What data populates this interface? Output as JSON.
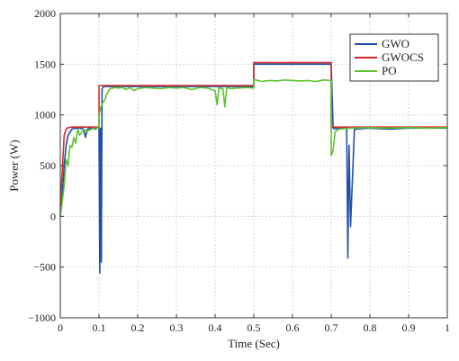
{
  "chart_data": {
    "type": "line",
    "title": "",
    "xlabel": "Time (Sec)",
    "ylabel": "Power (W)",
    "xlim": [
      0,
      1
    ],
    "ylim": [
      -1000,
      2000
    ],
    "xticks": [
      0,
      0.1,
      0.2,
      0.3,
      0.4,
      0.5,
      0.6,
      0.7,
      0.8,
      0.9,
      1
    ],
    "yticks": [
      -1000,
      -500,
      0,
      500,
      1000,
      1500,
      2000
    ],
    "xtick_labels": [
      "0",
      "0.1",
      "0.2",
      "0.3",
      "0.4",
      "0.5",
      "0.6",
      "0.7",
      "0.8",
      "0.9",
      "1"
    ],
    "ytick_labels": [
      "−1000",
      "−500",
      "0",
      "500",
      "1000",
      "1500",
      "2000"
    ],
    "grid": true,
    "legend_position": "top-right",
    "series": [
      {
        "name": "GWO",
        "color": "#1f4fa8",
        "x": [
          0,
          0.005,
          0.01,
          0.015,
          0.02,
          0.03,
          0.04,
          0.05,
          0.06,
          0.065,
          0.07,
          0.08,
          0.09,
          0.095,
          0.1,
          0.102,
          0.104,
          0.106,
          0.108,
          0.11,
          0.112,
          0.115,
          0.12,
          0.13,
          0.15,
          0.2,
          0.25,
          0.3,
          0.35,
          0.4,
          0.45,
          0.5,
          0.5,
          0.55,
          0.6,
          0.65,
          0.7,
          0.7,
          0.705,
          0.71,
          0.72,
          0.73,
          0.735,
          0.74,
          0.743,
          0.746,
          0.75,
          0.76,
          0.8,
          0.85,
          0.9,
          0.95,
          1.0
        ],
        "y": [
          50,
          200,
          500,
          700,
          800,
          860,
          870,
          870,
          860,
          780,
          860,
          870,
          860,
          870,
          870,
          -560,
          870,
          -450,
          1260,
          1270,
          1280,
          1280,
          1280,
          1280,
          1280,
          1280,
          1280,
          1280,
          1280,
          1280,
          1280,
          1280,
          1500,
          1500,
          1500,
          1500,
          1500,
          1500,
          870,
          860,
          870,
          870,
          870,
          870,
          -410,
          700,
          -100,
          860,
          870,
          860,
          870,
          870,
          870
        ]
      },
      {
        "name": "GWOCS",
        "color": "#d42a2a",
        "x": [
          0,
          0.005,
          0.01,
          0.015,
          0.02,
          0.03,
          0.05,
          0.08,
          0.1,
          0.1,
          0.105,
          0.11,
          0.15,
          0.2,
          0.3,
          0.4,
          0.5,
          0.5,
          0.55,
          0.6,
          0.65,
          0.7,
          0.7,
          0.71,
          0.75,
          0.8,
          0.9,
          1.0
        ],
        "y": [
          100,
          450,
          800,
          860,
          875,
          880,
          880,
          880,
          880,
          1290,
          1290,
          1290,
          1290,
          1290,
          1290,
          1290,
          1290,
          1515,
          1515,
          1515,
          1515,
          1515,
          880,
          880,
          880,
          880,
          880,
          880
        ]
      },
      {
        "name": "PO",
        "color": "#5ec230",
        "x": [
          0,
          0.005,
          0.01,
          0.015,
          0.02,
          0.025,
          0.03,
          0.035,
          0.04,
          0.045,
          0.05,
          0.06,
          0.07,
          0.08,
          0.09,
          0.1,
          0.1,
          0.105,
          0.11,
          0.115,
          0.12,
          0.125,
          0.13,
          0.14,
          0.15,
          0.16,
          0.17,
          0.18,
          0.19,
          0.2,
          0.22,
          0.24,
          0.26,
          0.28,
          0.3,
          0.32,
          0.34,
          0.36,
          0.38,
          0.4,
          0.405,
          0.41,
          0.42,
          0.425,
          0.43,
          0.44,
          0.46,
          0.48,
          0.5,
          0.5,
          0.52,
          0.54,
          0.56,
          0.58,
          0.6,
          0.62,
          0.64,
          0.66,
          0.68,
          0.7,
          0.7,
          0.705,
          0.71,
          0.72,
          0.75,
          0.8,
          0.85,
          0.9,
          0.95,
          1.0
        ],
        "y": [
          0,
          150,
          300,
          560,
          500,
          700,
          680,
          780,
          720,
          860,
          800,
          850,
          840,
          860,
          870,
          870,
          1000,
          1080,
          1120,
          1150,
          1200,
          1240,
          1260,
          1270,
          1265,
          1270,
          1250,
          1270,
          1240,
          1260,
          1270,
          1265,
          1260,
          1270,
          1265,
          1270,
          1250,
          1270,
          1265,
          1240,
          1100,
          1265,
          1260,
          1080,
          1270,
          1260,
          1265,
          1270,
          1265,
          1350,
          1330,
          1340,
          1335,
          1345,
          1340,
          1335,
          1340,
          1330,
          1345,
          1340,
          600,
          650,
          830,
          860,
          870,
          875,
          870,
          875,
          870,
          875
        ]
      }
    ]
  }
}
